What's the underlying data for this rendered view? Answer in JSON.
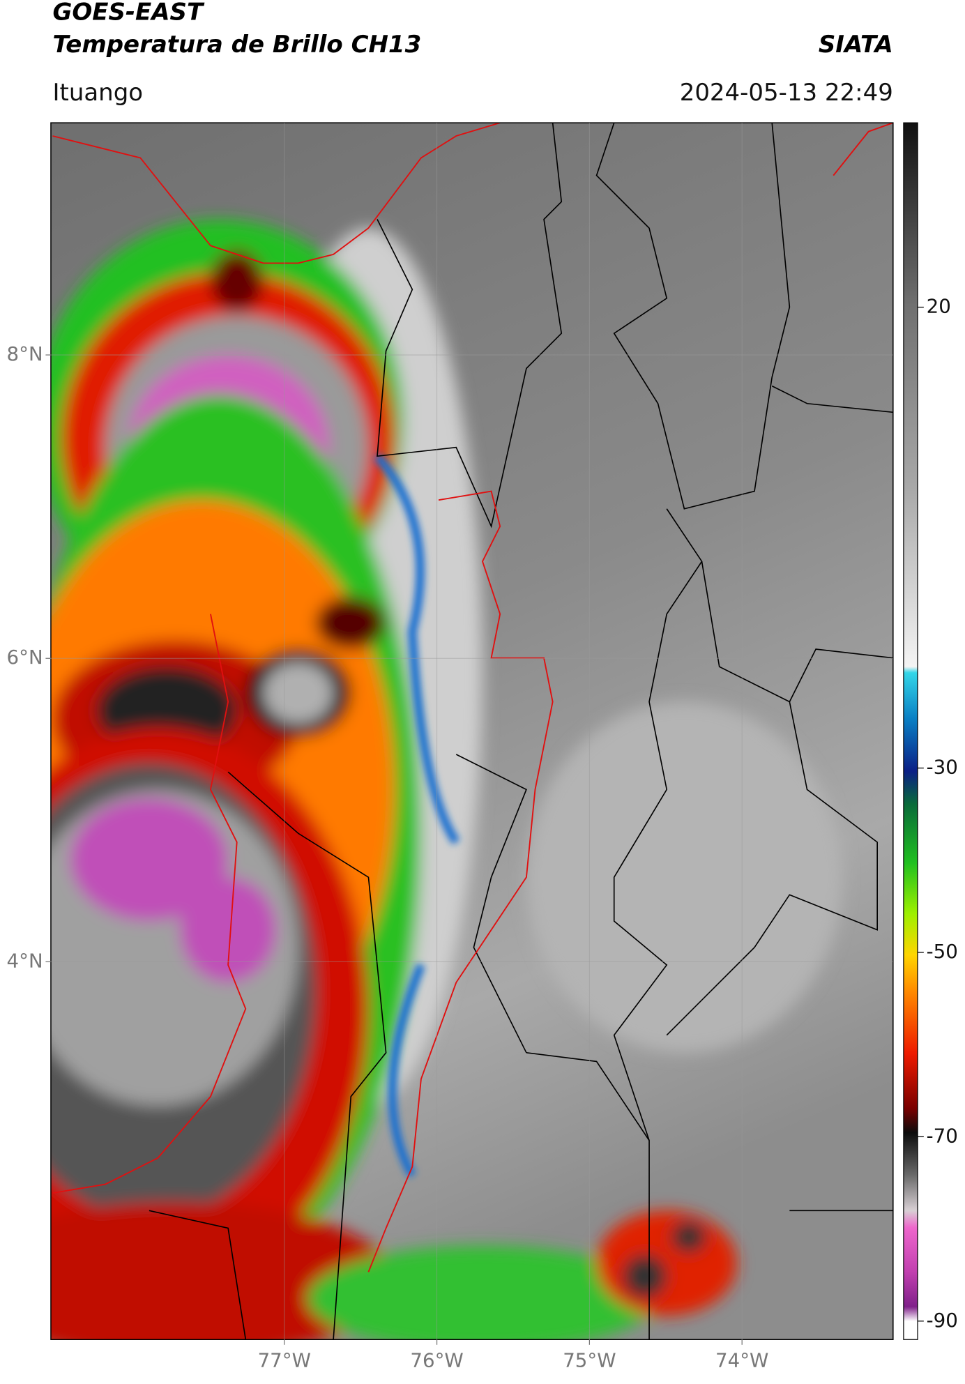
{
  "header": {
    "title": "GOES-EAST",
    "subtitle": "Temperatura de Brillo CH13",
    "brand": "SIATA",
    "location": "Ituango",
    "datetime": "2024-05-13 22:49"
  },
  "map": {
    "xlim": [
      -78.53,
      -73.01
    ],
    "ylim": [
      1.51,
      9.53
    ],
    "xticks": [
      {
        "value": -77,
        "label": "77°W"
      },
      {
        "value": -76,
        "label": "76°W"
      },
      {
        "value": -75,
        "label": "75°W"
      },
      {
        "value": -74,
        "label": "74°W"
      }
    ],
    "yticks": [
      {
        "value": 8,
        "label": "8°N"
      },
      {
        "value": 6,
        "label": "6°N"
      },
      {
        "value": 4,
        "label": "4°N"
      }
    ],
    "grid": true
  },
  "colorbar": {
    "lim": [
      -92,
      40
    ],
    "ticks": [
      20,
      -30,
      -50,
      -70,
      -90
    ]
  }
}
